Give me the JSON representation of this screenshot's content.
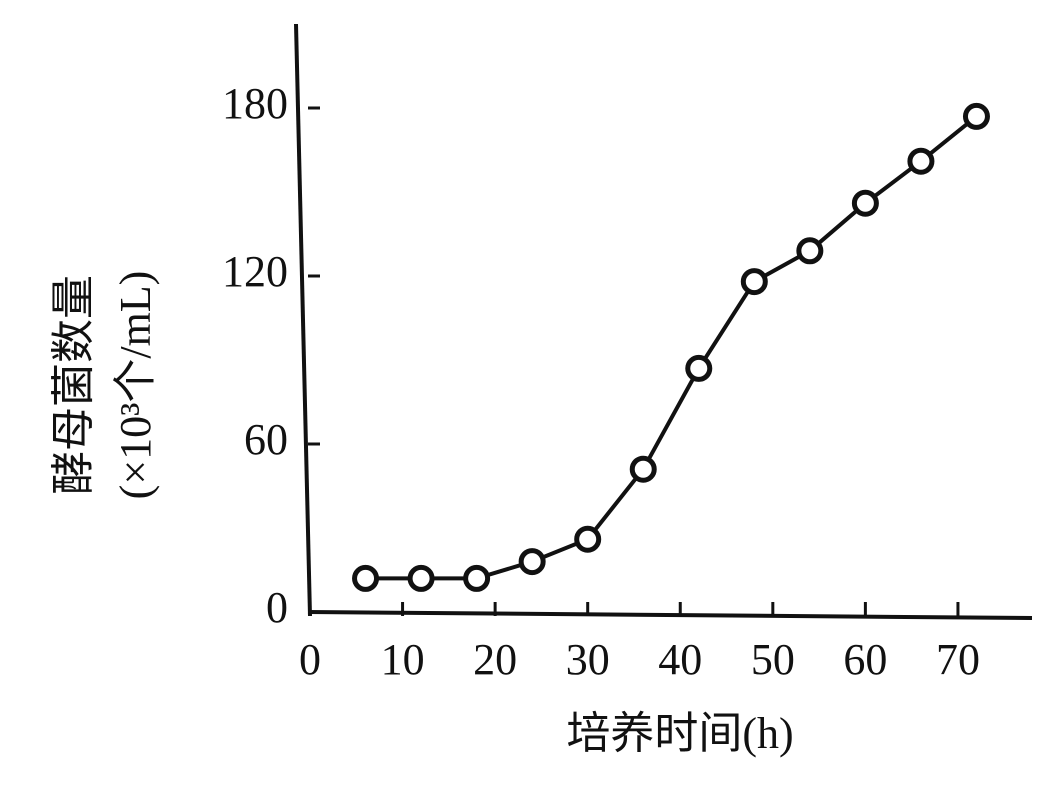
{
  "chart_data": {
    "type": "line",
    "x_label": "培养时间(h)",
    "y_label": [
      "酵母菌数量",
      "(×10³个/mL)"
    ],
    "x": [
      6,
      12,
      18,
      24,
      30,
      36,
      42,
      48,
      54,
      60,
      66,
      72
    ],
    "series": [
      {
        "color": "#111111",
        "values": [
          12,
          12,
          12,
          18,
          26,
          51,
          87,
          118,
          129,
          146,
          161,
          177
        ]
      }
    ],
    "xlim": [
      0,
      78
    ],
    "xticks": [
      0,
      10,
      20,
      30,
      40,
      50,
      60,
      70
    ],
    "ylim": [
      0,
      210
    ],
    "yticks": [
      0,
      60,
      120,
      180
    ],
    "grid": false
  }
}
